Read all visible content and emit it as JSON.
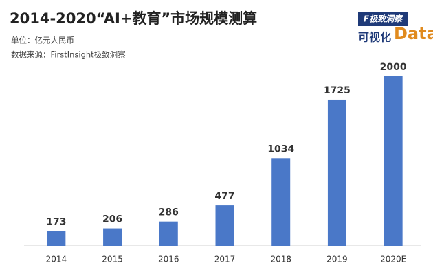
{
  "chart_data": {
    "type": "bar",
    "title": "2014-2020“AI+教育”市场规模测算",
    "subtitle": "单位：亿元人民币",
    "source": "数据来源：FirstInsight极致洞察",
    "categories": [
      "2014",
      "2015",
      "2016",
      "2017",
      "2018",
      "2019",
      "2020E"
    ],
    "values": [
      173,
      206,
      286,
      477,
      1034,
      1725,
      2000
    ],
    "color": "#4a78c8"
  },
  "logo": {
    "brand": "F极致洞察",
    "tagline": "可视化",
    "word": "Data"
  }
}
